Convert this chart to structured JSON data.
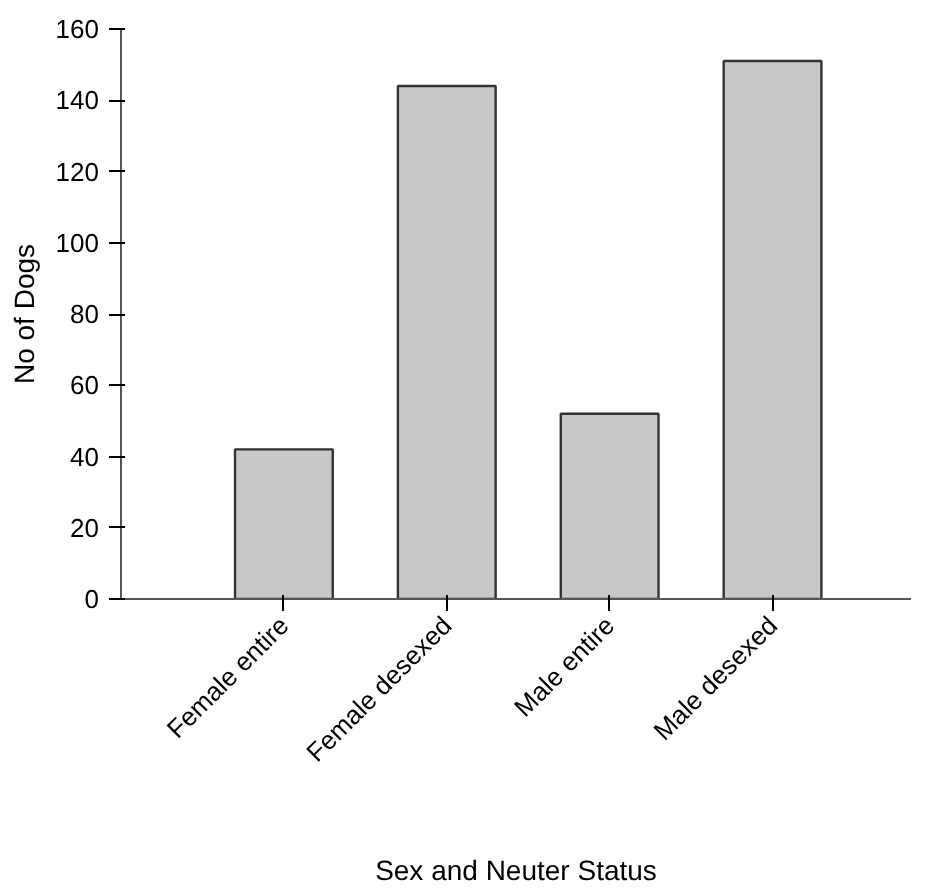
{
  "chart_data": {
    "type": "bar",
    "xlabel": "Sex and Neuter Status",
    "ylabel": "No of Dogs",
    "categories": [
      "Female entire",
      "Female desexed",
      "Male entire",
      "Male desexed"
    ],
    "values": [
      42,
      144,
      52,
      151
    ],
    "color": "#c8c8c8",
    "ylim": [
      0,
      160
    ],
    "yticks": [
      0,
      20,
      40,
      60,
      80,
      100,
      120,
      140,
      160
    ],
    "grid": false
  }
}
